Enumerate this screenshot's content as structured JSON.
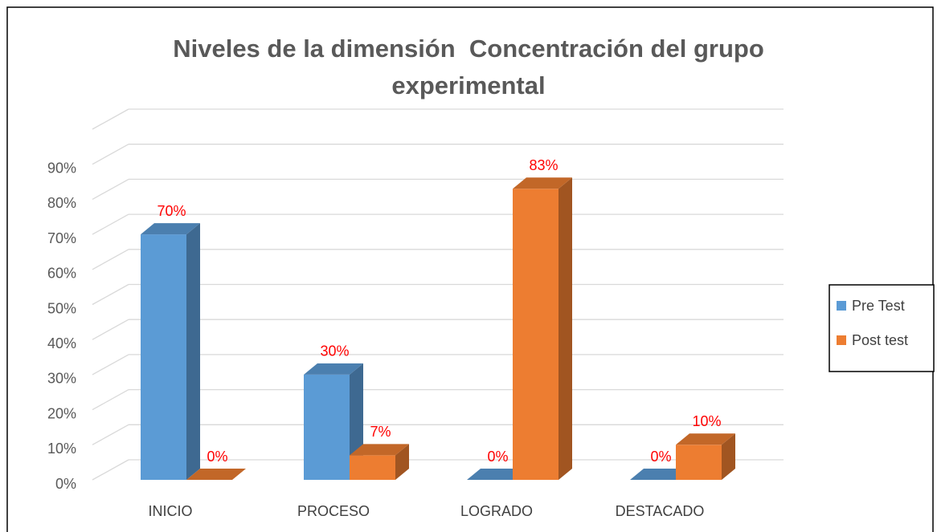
{
  "chart_data": {
    "type": "bar3d",
    "title": "Niveles de la dimensión  Concentración del grupo experimental",
    "categories": [
      "INICIO",
      "PROCESO",
      "LOGRADO",
      "DESTACADO"
    ],
    "series": [
      {
        "name": "Pre Test",
        "color": "#5b9bd5",
        "values": [
          70,
          30,
          0,
          0
        ],
        "value_labels": [
          "70%",
          "30%",
          "0%",
          "0%"
        ]
      },
      {
        "name": "Post test",
        "color": "#ed7d31",
        "values": [
          0,
          7,
          83,
          10
        ],
        "value_labels": [
          "0%",
          "7%",
          "83%",
          "10%"
        ]
      }
    ],
    "ylim": [
      0,
      100
    ],
    "yticks": [
      {
        "value": 0,
        "label": "0%"
      },
      {
        "value": 10,
        "label": "10%"
      },
      {
        "value": 20,
        "label": "20%"
      },
      {
        "value": 30,
        "label": "30%"
      },
      {
        "value": 40,
        "label": "40%"
      },
      {
        "value": 50,
        "label": "50%"
      },
      {
        "value": 60,
        "label": "60%"
      },
      {
        "value": 70,
        "label": "70%"
      },
      {
        "value": 80,
        "label": "80%"
      },
      {
        "value": 90,
        "label": "90%"
      }
    ],
    "grid": true,
    "legend": "right"
  }
}
